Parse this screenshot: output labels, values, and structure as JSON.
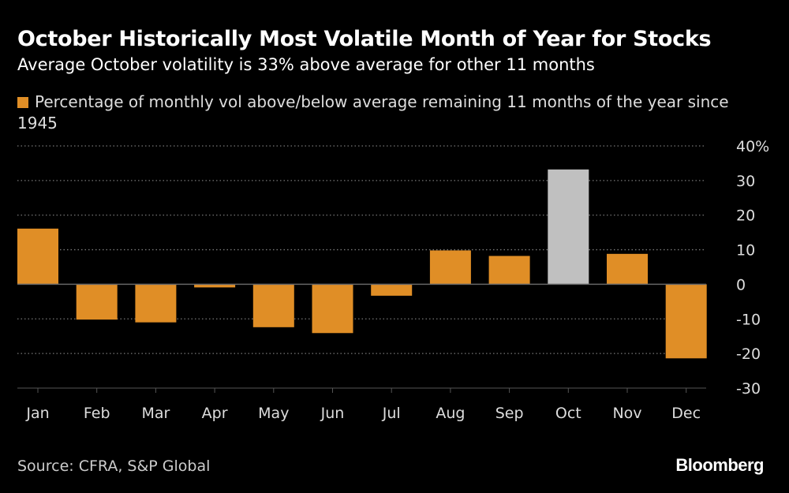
{
  "chart_data": {
    "type": "bar",
    "title": "October Historically Most Volatile Month of Year for Stocks",
    "subtitle": "Average October volatility is 33% above average for other 11 months",
    "legend": "Percentage of monthly vol above/below average remaining 11 months of the year since 1945",
    "categories": [
      "Jan",
      "Feb",
      "Mar",
      "Apr",
      "May",
      "Jun",
      "Jul",
      "Aug",
      "Sep",
      "Oct",
      "Nov",
      "Dec"
    ],
    "values": [
      16.1,
      -10.2,
      -11.0,
      -0.9,
      -12.4,
      -14.1,
      -3.3,
      9.8,
      8.2,
      33.2,
      8.8,
      -21.4
    ],
    "ylim": [
      -30,
      40
    ],
    "yticks": [
      40,
      30,
      20,
      10,
      0,
      -10,
      -20,
      -30
    ],
    "ytick_labels": [
      "40%",
      "30",
      "20",
      "10",
      "0",
      "-10",
      "-20",
      "-30"
    ],
    "grid": true,
    "legend_placement": "top-left",
    "colors": {
      "default": "#e08e26",
      "highlight": "#c0c0c0",
      "highlight_category": "Oct"
    }
  },
  "source": "Source: CFRA, S&P Global",
  "brand": "Bloomberg"
}
